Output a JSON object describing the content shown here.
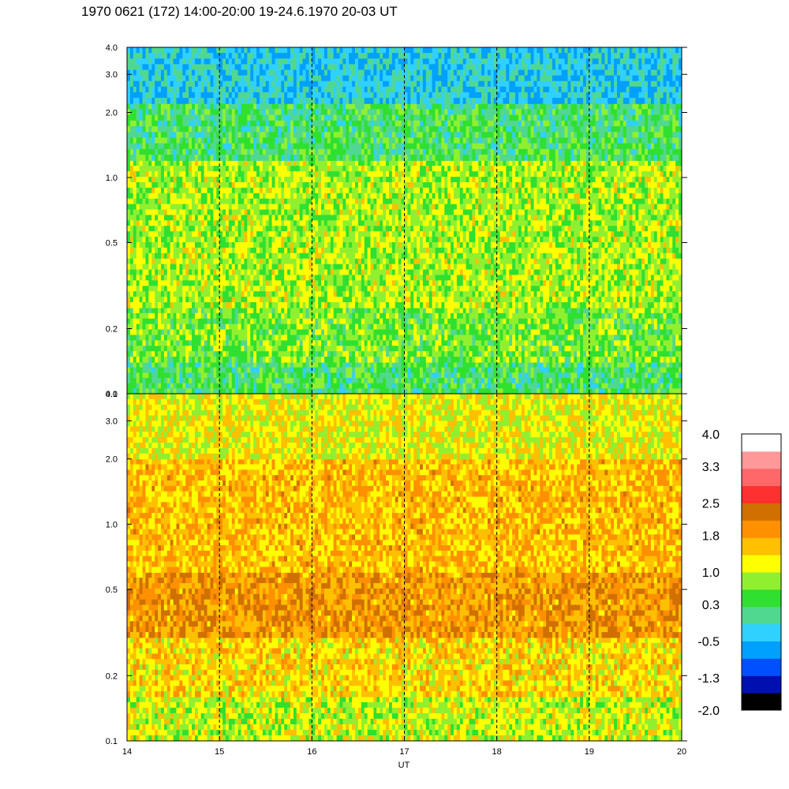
{
  "title": "1970 0621 (172) 14:00-20:00 19-24.6.1970  20-03 UT",
  "chart_data": [
    {
      "type": "heatmap",
      "panel": "top",
      "x_range": [
        14,
        20
      ],
      "y_range": [
        0.1,
        4.0
      ],
      "y_scale": "log",
      "x_ticks": [
        14,
        15,
        16,
        17,
        18,
        19,
        20
      ],
      "y_ticks": [
        "0.1",
        "0.2",
        "0.5",
        "1.0",
        "2.0",
        "3.0",
        "4.0"
      ],
      "y_tick_values": [
        0.1,
        0.2,
        0.5,
        1.0,
        2.0,
        3.0,
        4.0
      ],
      "hour_markers": [
        15,
        16,
        17,
        18,
        19
      ],
      "dominant_level_by_band": [
        {
          "y_from": 0.1,
          "y_to": 0.14,
          "level": 0.3
        },
        {
          "y_from": 0.14,
          "y_to": 0.25,
          "level": 0.65
        },
        {
          "y_from": 0.25,
          "y_to": 1.2,
          "level": 0.9
        },
        {
          "y_from": 1.2,
          "y_to": 2.2,
          "level": 0.3
        },
        {
          "y_from": 2.2,
          "y_to": 4.0,
          "level": -0.3
        }
      ]
    },
    {
      "type": "heatmap",
      "panel": "bottom",
      "x_range": [
        14,
        20
      ],
      "y_range": [
        0.1,
        4.0
      ],
      "y_scale": "log",
      "x_ticks": [
        14,
        15,
        16,
        17,
        18,
        19,
        20
      ],
      "y_ticks": [
        "0.1",
        "0.2",
        "0.5",
        "1.0",
        "2.0",
        "3.0",
        "4.0"
      ],
      "y_tick_values": [
        0.1,
        0.2,
        0.5,
        1.0,
        2.0,
        3.0,
        4.0
      ],
      "xlabel": "UT",
      "hour_markers": [
        15,
        16,
        17,
        18,
        19
      ],
      "dominant_level_by_band": [
        {
          "y_from": 0.1,
          "y_to": 0.16,
          "level": 1.0
        },
        {
          "y_from": 0.16,
          "y_to": 0.3,
          "level": 1.4
        },
        {
          "y_from": 0.3,
          "y_to": 0.6,
          "level": 1.9
        },
        {
          "y_from": 0.6,
          "y_to": 2.0,
          "level": 1.6
        },
        {
          "y_from": 2.0,
          "y_to": 4.0,
          "level": 1.2
        }
      ]
    }
  ],
  "colorbar": {
    "labels": [
      "4.0",
      "3.3",
      "2.5",
      "1.8",
      "1.0",
      "0.3",
      "-0.5",
      "-1.3",
      "-2.0"
    ],
    "label_values": [
      4.0,
      3.3,
      2.5,
      1.8,
      1.0,
      0.3,
      -0.5,
      -1.3,
      -2.0
    ],
    "range": [
      -2.0,
      4.0
    ],
    "colors_bottom_to_top": [
      "#000000",
      "#0010b0",
      "#0050ff",
      "#00a0ff",
      "#30d0ff",
      "#50d890",
      "#30e030",
      "#90f030",
      "#ffff00",
      "#ffc000",
      "#ff9000",
      "#d07000",
      "#ff3030",
      "#ff6868",
      "#ff9898",
      "#ffffff"
    ]
  }
}
